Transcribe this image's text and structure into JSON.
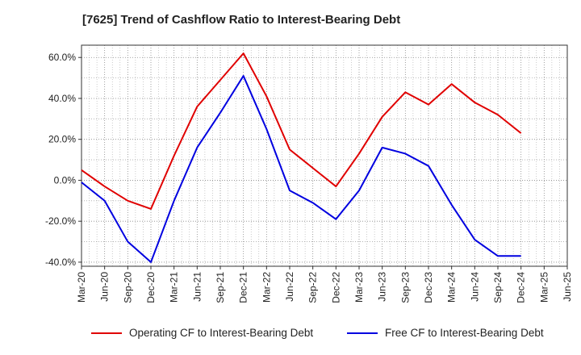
{
  "title": "[7625]  Trend of Cashflow Ratio to Interest-Bearing Debt",
  "chart_data": {
    "type": "line",
    "title": "[7625]  Trend of Cashflow Ratio to Interest-Bearing Debt",
    "xlabel": "",
    "ylabel": "",
    "x_tick_labels": [
      "Mar-20",
      "Jun-20",
      "Sep-20",
      "Dec-20",
      "Mar-21",
      "Jun-21",
      "Sep-21",
      "Dec-21",
      "Mar-22",
      "Jun-22",
      "Sep-22",
      "Dec-22",
      "Mar-23",
      "Jun-23",
      "Sep-23",
      "Dec-23",
      "Mar-24",
      "Jun-24",
      "Sep-24",
      "Dec-24",
      "Mar-25",
      "Jun-25"
    ],
    "y_tick_labels": [
      "60.0%",
      "40.0%",
      "20.0%",
      "0.0%",
      "-20.0%",
      "-40.0%"
    ],
    "y_ticks": [
      60,
      40,
      20,
      0,
      -20,
      -40
    ],
    "ylim": [
      -42,
      66
    ],
    "grid": true,
    "legend_position": "bottom",
    "series": [
      {
        "name": "Operating CF to Interest-Bearing Debt",
        "color": "#e00000",
        "values": [
          5.0,
          -3.0,
          -10.0,
          -14.0,
          12.0,
          36.0,
          49.0,
          62.0,
          41.0,
          15.0,
          6.0,
          -3.0,
          13.0,
          31.0,
          43.0,
          37.0,
          47.0,
          38.0,
          32.0,
          23.0,
          null,
          null
        ]
      },
      {
        "name": "Free CF to Interest-Bearing Debt",
        "color": "#0000e0",
        "values": [
          -1.0,
          -10.0,
          -30.0,
          -40.0,
          -10.0,
          16.0,
          33.0,
          51.0,
          25.0,
          -5.0,
          -11.0,
          -19.0,
          -5.0,
          16.0,
          13.0,
          7.0,
          -12.0,
          -29.0,
          -37.0,
          -37.0,
          null,
          null
        ]
      }
    ]
  }
}
